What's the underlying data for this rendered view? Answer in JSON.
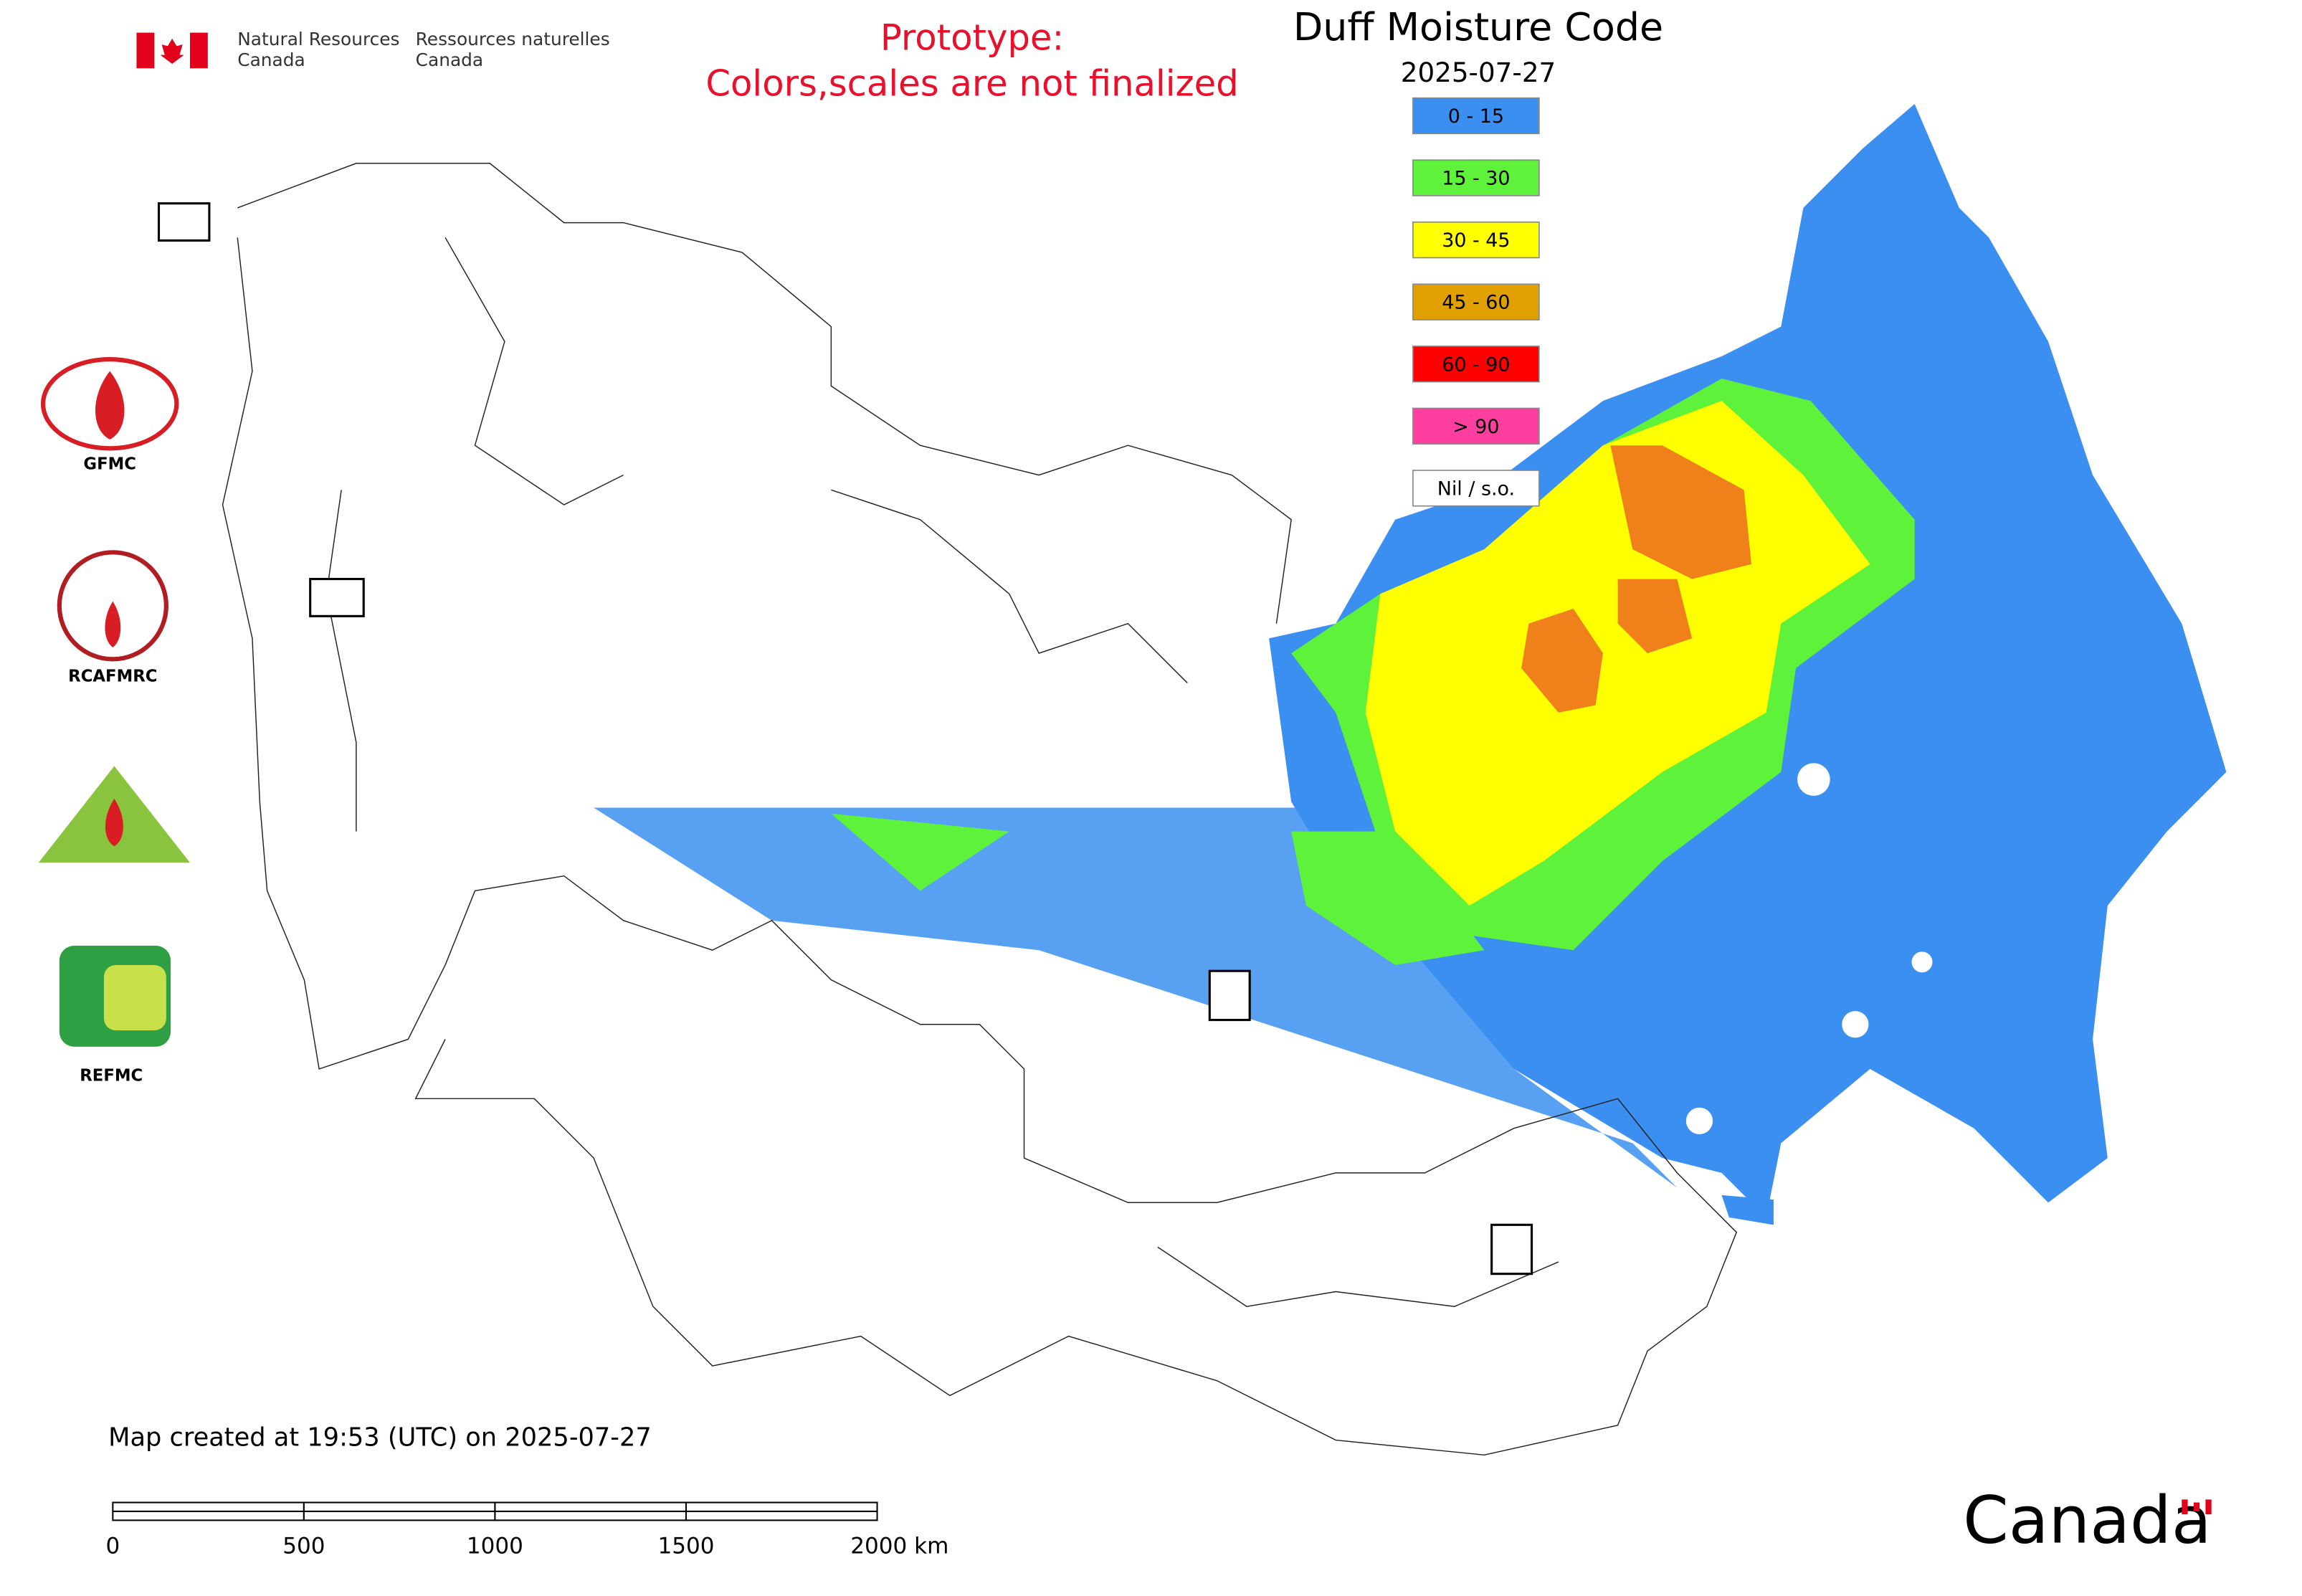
{
  "header": {
    "agency_en": [
      "Natural Resources",
      "Canada"
    ],
    "agency_fr": [
      "Ressources naturelles",
      "Canada"
    ],
    "notice": [
      "Prototype:",
      "Colors,scales are not finalized"
    ]
  },
  "map": {
    "title": "Duff Moisture Code",
    "date": "2025-07-27",
    "legend": [
      {
        "label": "0 - 15",
        "color": "#3b8ff0"
      },
      {
        "label": "15 - 30",
        "color": "#5ef23a"
      },
      {
        "label": "30 - 45",
        "color": "#ffff00"
      },
      {
        "label": "45 - 60",
        "color": "#e0a000"
      },
      {
        "label": "60 - 90",
        "color": "#ff0000"
      },
      {
        "label": "> 90",
        "color": "#ff3f9f"
      },
      {
        "label": "Nil / s.o.",
        "color": "#ffffff"
      }
    ],
    "logos": [
      "GFMC",
      "RCAFMRC",
      "REFMC"
    ],
    "footer": "Map created at 19:53 (UTC) on 2025-07-27",
    "scale_bar": [
      "0",
      "500",
      "1000",
      "1500",
      "2000 km"
    ],
    "wordmark": "Canada"
  }
}
